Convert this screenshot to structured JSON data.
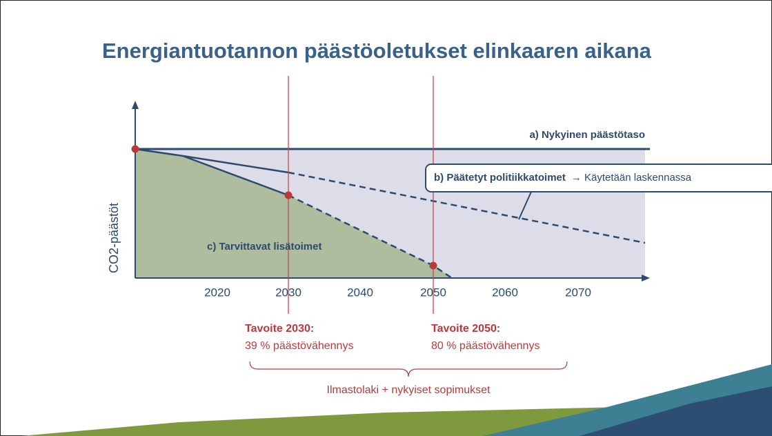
{
  "title": "Energiantuotannon päästöoletukset elinkaaren aikana",
  "y_axis_label": "CO2-päästöt",
  "x_ticks": [
    "2020",
    "2030",
    "2040",
    "2050",
    "2060",
    "2070"
  ],
  "scenarios": {
    "a": "a) Nykyinen päästötaso",
    "b": "b) Päätetyt politiikkatoimet",
    "b_note": "→ Käytetään laskennassa",
    "c": "c) Tarvittavat lisätoimet"
  },
  "targets": [
    {
      "title": "Tavoite 2030:",
      "text": "39 % päästövähennys"
    },
    {
      "title": "Tavoite 2050:",
      "text": "80 % päästövähennys"
    }
  ],
  "basis": "Ilmastolaki + nykyiset sopimukset"
}
